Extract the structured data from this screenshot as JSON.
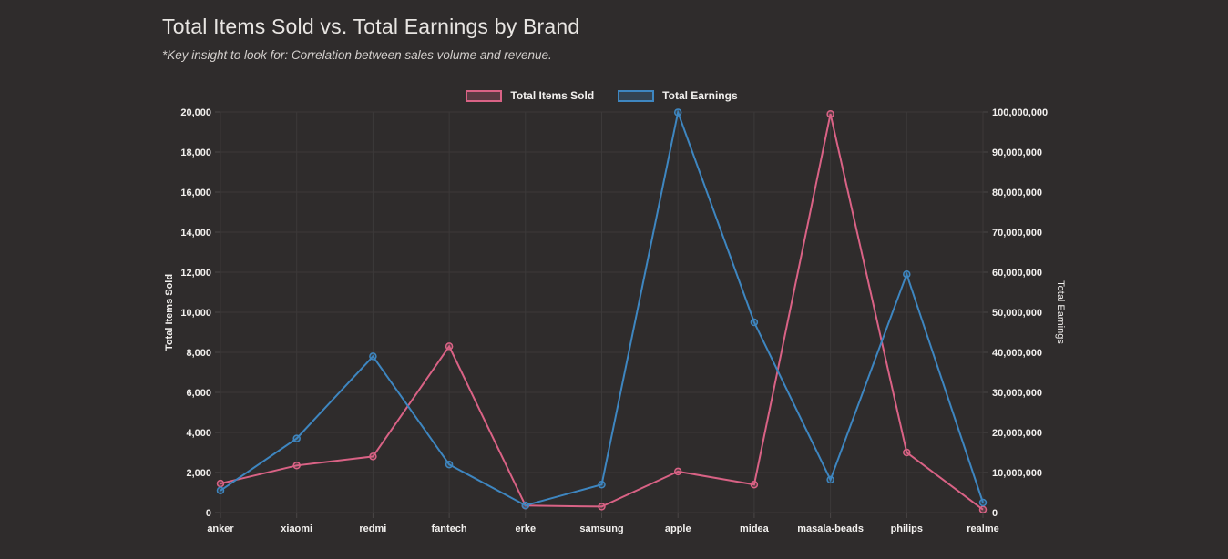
{
  "page": {
    "title": "Total Items Sold vs. Total Earnings by Brand",
    "subtitle": "*Key insight to look for: Correlation between sales volume and revenue."
  },
  "colors": {
    "background": "#2f2c2c",
    "grid": "#3c3939",
    "tick_mark": "#4a4646",
    "tick_text": "#f2f0ee",
    "axis_title_text": "#f2f0ee",
    "title_text": "#e8e5e2",
    "subtitle_text": "#d3cfcc",
    "items_sold_line": "#d96285",
    "items_sold_fill": "rgba(217,98,133,0.25)",
    "earnings_line": "#3e86c0",
    "earnings_fill": "rgba(62,134,192,0.25)"
  },
  "chart_data": {
    "type": "line",
    "title": "Total Items Sold vs. Total Earnings by Brand",
    "subtitle": "*Key insight to look for: Correlation between sales volume and revenue.",
    "grid": true,
    "legend_position": "top",
    "categories": [
      "anker",
      "xiaomi",
      "redmi",
      "fantech",
      "erke",
      "samsung",
      "apple",
      "midea",
      "masala-beads",
      "philips",
      "realme"
    ],
    "series": [
      {
        "name": "Total Items Sold",
        "axis": "left",
        "color": "#d96285",
        "fill_color": "rgba(217,98,133,0.25)",
        "values": [
          1450,
          2350,
          2800,
          8300,
          350,
          300,
          2050,
          1400,
          19900,
          3000,
          150
        ]
      },
      {
        "name": "Total Earnings",
        "axis": "right",
        "color": "#3e86c0",
        "fill_color": "rgba(62,134,192,0.25)",
        "values": [
          5500000,
          18500000,
          39000000,
          12000000,
          1800000,
          7000000,
          99900000,
          47500000,
          8200000,
          59500000,
          2500000
        ]
      }
    ],
    "left_axis": {
      "title": "Total Items Sold",
      "min": 0,
      "max": 20000,
      "step": 2000,
      "tick_labels": [
        "0",
        "2,000",
        "4,000",
        "6,000",
        "8,000",
        "10,000",
        "12,000",
        "14,000",
        "16,000",
        "18,000",
        "20,000"
      ]
    },
    "right_axis": {
      "title": "Total Earnings",
      "min": 0,
      "max": 100000000,
      "step": 10000000,
      "tick_labels": [
        "0",
        "10,000,000",
        "20,000,000",
        "30,000,000",
        "40,000,000",
        "50,000,000",
        "60,000,000",
        "70,000,000",
        "80,000,000",
        "90,000,000",
        "100,000,000"
      ]
    }
  }
}
